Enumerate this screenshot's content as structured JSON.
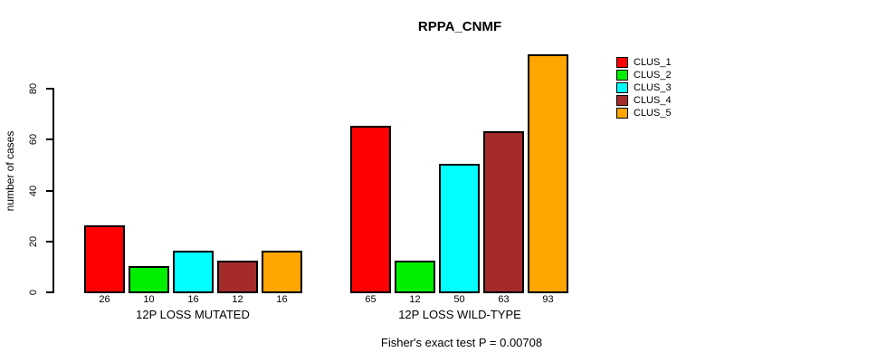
{
  "chart_data": {
    "type": "bar",
    "title": "RPPA_CNMF",
    "xlabel": "",
    "ylabel": "number of cases",
    "yticks": [
      0,
      20,
      40,
      60,
      80
    ],
    "ylim": [
      0,
      93
    ],
    "grid": false,
    "legend_position": "right-outside",
    "series_names": [
      "CLUS_1",
      "CLUS_2",
      "CLUS_3",
      "CLUS_4",
      "CLUS_5"
    ],
    "series_colors": [
      "#FF0000",
      "#00EE00",
      "#00FFFF",
      "#A52A2A",
      "#FFA500"
    ],
    "groups": [
      {
        "label": "12P LOSS MUTATED",
        "values": [
          26,
          10,
          16,
          12,
          16
        ]
      },
      {
        "label": "12P LOSS WILD-TYPE",
        "values": [
          65,
          12,
          50,
          63,
          93
        ]
      }
    ],
    "bar_value_labels": [
      [
        "26",
        "10",
        "16",
        "12",
        "16"
      ],
      [
        "65",
        "12",
        "50",
        "63",
        "93"
      ]
    ],
    "annotation": "Fisher's exact test P = 0.00708"
  }
}
